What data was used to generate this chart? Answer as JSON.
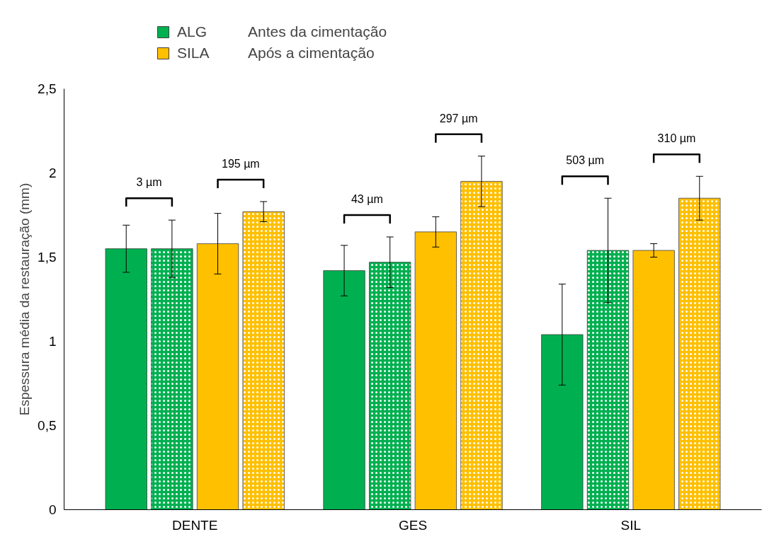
{
  "chart_data": {
    "type": "bar",
    "ylabel": "Espessura média da restauração (mm)",
    "categories": [
      "DENTE",
      "GES",
      "SIL"
    ],
    "series": [
      {
        "name": "ALG",
        "color": "#00b050",
        "values": [
          1.55,
          1.42,
          1.04
        ],
        "errors": [
          0.14,
          0.15,
          0.3
        ]
      },
      {
        "color": "#00b050",
        "values": [
          1.55,
          1.47,
          1.54
        ],
        "errors": [
          0.17,
          0.15,
          0.31
        ]
      },
      {
        "name": "SILA",
        "color": "#ffc000",
        "values": [
          1.58,
          1.65,
          1.54
        ],
        "errors": [
          0.18,
          0.09,
          0.04
        ]
      },
      {
        "color": "#ffc000",
        "values": [
          1.77,
          1.95,
          1.85
        ],
        "errors": [
          0.06,
          0.15,
          0.13
        ]
      }
    ],
    "annotations": [
      "Antes da cimentação",
      "Após a cimentação",
      "3 µm",
      "195 µm",
      "43 µm",
      "297 µm",
      "503 µm",
      "310 µm"
    ],
    "ylim": [
      0,
      2.5
    ],
    "yticks": [
      0,
      {
        "value": 0.5,
        "label": "0,5"
      },
      1,
      {
        "value": 1.5,
        "label": "1,5"
      },
      2,
      {
        "value": 2.5,
        "label": "2,5"
      }
    ],
    "grid": false,
    "legend": "top left"
  }
}
